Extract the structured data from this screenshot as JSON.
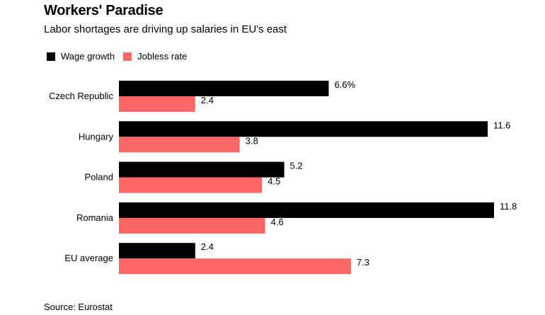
{
  "title": "Workers' Paradise",
  "subtitle": "Labor shortages are driving up salaries in EU's east",
  "source": "Source: Eurostat",
  "legend": [
    {
      "label": "Wage growth",
      "color": "#000000"
    },
    {
      "label": "Jobless rate",
      "color": "#ff6666"
    }
  ],
  "chart_data": {
    "type": "bar",
    "orientation": "horizontal",
    "categories": [
      "Czech Republic",
      "Hungary",
      "Poland",
      "Romania",
      "EU average"
    ],
    "series": [
      {
        "name": "Wage growth",
        "color": "#000000",
        "values": [
          6.6,
          11.6,
          5.2,
          11.8,
          2.4
        ],
        "labels": [
          "6.6%",
          "11.6",
          "5.2",
          "11.8",
          "2.4"
        ]
      },
      {
        "name": "Jobless rate",
        "color": "#ff6666",
        "values": [
          2.4,
          3.8,
          4.5,
          4.6,
          7.3
        ],
        "labels": [
          "2.4",
          "3.8",
          "4.5",
          "4.6",
          "7.3"
        ]
      }
    ],
    "xlim": [
      0,
      11.8
    ],
    "grid": false,
    "legend_position": "top-left"
  }
}
